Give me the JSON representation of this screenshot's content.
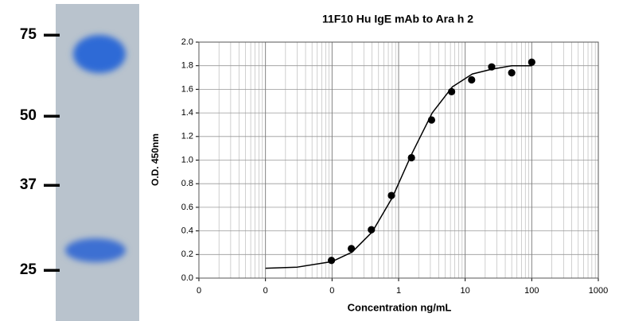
{
  "chart_data": [
    {
      "type": "gel",
      "markers": [
        75,
        50,
        37,
        25
      ]
    },
    {
      "type": "scatter",
      "title": "11F10 Hu IgE mAb to Ara h 2",
      "xlabel": "Concentration ng/mL",
      "ylabel": "O.D. 450nm",
      "xscale": "log",
      "xlim": [
        0.001,
        1000
      ],
      "xticks": [
        {
          "value": 0.001,
          "label": "0"
        },
        {
          "value": 0.01,
          "label": "0"
        },
        {
          "value": 0.1,
          "label": "0"
        },
        1,
        10,
        100,
        1000
      ],
      "ylim": [
        0,
        2.0
      ],
      "yticks": [
        {
          "value": 0,
          "label": "0.0"
        },
        0.2,
        0.4,
        0.6,
        0.8,
        {
          "value": 1.0,
          "label": "1.0"
        },
        1.2,
        1.4,
        1.6,
        1.8,
        {
          "value": 2.0,
          "label": "2.0"
        }
      ],
      "grid": true,
      "series": [
        {
          "mode": "markers",
          "color": "#000000",
          "x": [
            0.098,
            0.195,
            0.39,
            0.78,
            1.56,
            3.125,
            6.25,
            12.5,
            25,
            50,
            100
          ],
          "values": [
            0.15,
            0.25,
            0.41,
            0.7,
            1.02,
            1.34,
            1.58,
            1.68,
            1.79,
            1.74,
            1.83
          ]
        },
        {
          "mode": "line",
          "color": "#000000",
          "x": [
            0.01,
            0.03,
            0.1,
            0.2,
            0.4,
            0.8,
            1.6,
            3.2,
            6.4,
            12.8,
            25,
            50,
            100
          ],
          "values": [
            0.083,
            0.093,
            0.14,
            0.22,
            0.39,
            0.68,
            1.06,
            1.4,
            1.62,
            1.73,
            1.77,
            1.8,
            1.8
          ]
        }
      ]
    }
  ]
}
